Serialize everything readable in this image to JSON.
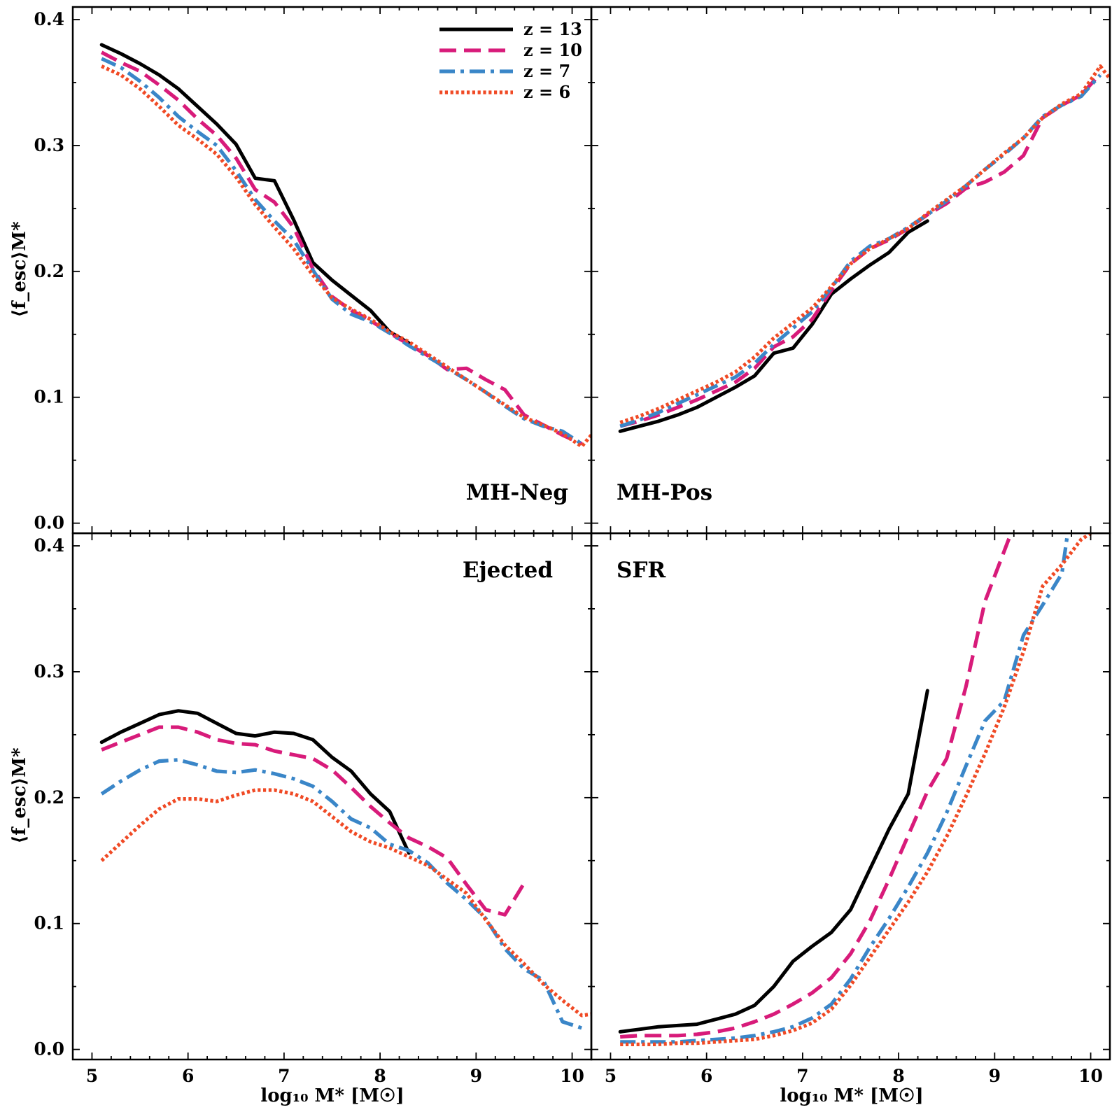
{
  "chart_data": {
    "type": "line",
    "layout": "2x2 grid, shared x axis per column, shared y axis per row",
    "xlabel": "log₁₀ M* [M☉]",
    "ylabel": "⟨f_esc⟩M*",
    "xlim": [
      4.8,
      10.2
    ],
    "ylim": [
      -0.008,
      0.41
    ],
    "x_ticks": [
      5,
      6,
      7,
      8,
      9,
      10
    ],
    "y_ticks": [
      0.0,
      0.1,
      0.2,
      0.3,
      0.4
    ],
    "x_tick_labels": [
      "5",
      "6",
      "7",
      "8",
      "9",
      "10"
    ],
    "y_tick_labels": [
      "0.0",
      "0.1",
      "0.2",
      "0.3",
      "0.4"
    ],
    "grid": false,
    "legend": {
      "placement": "top-right of top-left panel",
      "entries": [
        "z = 13",
        "z = 10",
        "z = 7",
        "z = 6"
      ]
    },
    "series_styles": [
      {
        "name": "z = 13",
        "color": "#000000",
        "dash": "solid"
      },
      {
        "name": "z = 10",
        "color": "#d81b7a",
        "dash": "dashed"
      },
      {
        "name": "z = 7",
        "color": "#3a86c8",
        "dash": "dashdot"
      },
      {
        "name": "z = 6",
        "color": "#f04a25",
        "dash": "dotted"
      }
    ],
    "panels": [
      {
        "label": "MH-Neg",
        "label_position": "bottom-right",
        "series": [
          {
            "name": "z = 13",
            "x": [
              5.1,
              5.3,
              5.5,
              5.7,
              5.9,
              6.1,
              6.3,
              6.5,
              6.7,
              6.9,
              7.1,
              7.3,
              7.5,
              7.7,
              7.9,
              8.1,
              8.3
            ],
            "y": [
              0.38,
              0.373,
              0.365,
              0.356,
              0.345,
              0.331,
              0.317,
              0.301,
              0.274,
              0.272,
              0.241,
              0.207,
              0.193,
              0.181,
              0.169,
              0.152,
              0.143
            ]
          },
          {
            "name": "z = 10",
            "x": [
              5.1,
              5.3,
              5.5,
              5.7,
              5.9,
              6.1,
              6.3,
              6.5,
              6.7,
              6.9,
              7.1,
              7.3,
              7.5,
              7.7,
              7.9,
              8.1,
              8.3,
              8.5,
              8.7,
              8.9,
              9.1,
              9.3,
              9.5,
              9.7,
              9.9,
              10.1
            ],
            "y": [
              0.374,
              0.366,
              0.359,
              0.348,
              0.336,
              0.321,
              0.308,
              0.29,
              0.265,
              0.255,
              0.235,
              0.202,
              0.18,
              0.169,
              0.161,
              0.151,
              0.142,
              0.133,
              0.122,
              0.123,
              0.114,
              0.106,
              0.086,
              0.078,
              0.07,
              0.063
            ]
          },
          {
            "name": "z = 7",
            "x": [
              5.1,
              5.3,
              5.5,
              5.7,
              5.9,
              6.1,
              6.3,
              6.5,
              6.7,
              6.9,
              7.1,
              7.3,
              7.5,
              7.7,
              7.9,
              8.1,
              8.3,
              8.5,
              8.7,
              8.9,
              9.1,
              9.3,
              9.5,
              9.7,
              9.9,
              10.1
            ],
            "y": [
              0.369,
              0.362,
              0.351,
              0.338,
              0.323,
              0.311,
              0.3,
              0.28,
              0.257,
              0.24,
              0.225,
              0.201,
              0.178,
              0.166,
              0.16,
              0.151,
              0.141,
              0.132,
              0.123,
              0.114,
              0.104,
              0.093,
              0.083,
              0.077,
              0.073,
              0.063
            ]
          },
          {
            "name": "z = 6",
            "x": [
              5.1,
              5.3,
              5.5,
              5.7,
              5.9,
              6.1,
              6.3,
              6.5,
              6.7,
              6.9,
              7.1,
              7.3,
              7.5,
              7.7,
              7.9,
              8.1,
              8.3,
              8.5,
              8.7,
              8.9,
              9.1,
              9.3,
              9.5,
              9.7,
              9.9,
              10.1,
              10.2
            ],
            "y": [
              0.363,
              0.356,
              0.345,
              0.331,
              0.316,
              0.305,
              0.293,
              0.275,
              0.253,
              0.235,
              0.218,
              0.197,
              0.179,
              0.17,
              0.162,
              0.152,
              0.144,
              0.134,
              0.124,
              0.114,
              0.104,
              0.094,
              0.084,
              0.078,
              0.071,
              0.061,
              0.07
            ]
          }
        ]
      },
      {
        "label": "MH-Pos",
        "label_position": "bottom-left",
        "series": [
          {
            "name": "z = 13",
            "x": [
              5.1,
              5.3,
              5.5,
              5.7,
              5.9,
              6.1,
              6.3,
              6.5,
              6.7,
              6.9,
              7.1,
              7.3,
              7.5,
              7.7,
              7.9,
              8.1,
              8.3
            ],
            "y": [
              0.073,
              0.077,
              0.081,
              0.086,
              0.092,
              0.1,
              0.108,
              0.117,
              0.135,
              0.139,
              0.158,
              0.182,
              0.194,
              0.205,
              0.215,
              0.231,
              0.24
            ]
          },
          {
            "name": "z = 10",
            "x": [
              5.1,
              5.3,
              5.5,
              5.7,
              5.9,
              6.1,
              6.3,
              6.5,
              6.7,
              6.9,
              7.1,
              7.3,
              7.5,
              7.7,
              7.9,
              8.1,
              8.3,
              8.5,
              8.7,
              8.9,
              9.1,
              9.3,
              9.5,
              9.7,
              9.9,
              10.1
            ],
            "y": [
              0.077,
              0.081,
              0.086,
              0.092,
              0.098,
              0.105,
              0.112,
              0.123,
              0.14,
              0.148,
              0.162,
              0.185,
              0.206,
              0.218,
              0.225,
              0.234,
              0.245,
              0.254,
              0.266,
              0.271,
              0.279,
              0.292,
              0.322,
              0.332,
              0.34,
              0.357
            ]
          },
          {
            "name": "z = 7",
            "x": [
              5.1,
              5.3,
              5.5,
              5.7,
              5.9,
              6.1,
              6.3,
              6.5,
              6.7,
              6.9,
              7.1,
              7.3,
              7.5,
              7.7,
              7.9,
              8.1,
              8.3,
              8.5,
              8.7,
              8.9,
              9.1,
              9.3,
              9.5,
              9.7,
              9.9,
              10.1
            ],
            "y": [
              0.077,
              0.082,
              0.088,
              0.095,
              0.102,
              0.109,
              0.116,
              0.127,
              0.142,
              0.155,
              0.168,
              0.187,
              0.208,
              0.22,
              0.226,
              0.235,
              0.245,
              0.256,
              0.268,
              0.281,
              0.293,
              0.306,
              0.323,
              0.332,
              0.339,
              0.356
            ]
          },
          {
            "name": "z = 6",
            "x": [
              5.1,
              5.3,
              5.5,
              5.7,
              5.9,
              6.1,
              6.3,
              6.5,
              6.7,
              6.9,
              7.1,
              7.3,
              7.5,
              7.7,
              7.9,
              8.1,
              8.3,
              8.5,
              8.7,
              8.9,
              9.1,
              9.3,
              9.5,
              9.7,
              9.9,
              10.1,
              10.2
            ],
            "y": [
              0.08,
              0.085,
              0.091,
              0.098,
              0.105,
              0.112,
              0.12,
              0.132,
              0.147,
              0.159,
              0.171,
              0.188,
              0.206,
              0.218,
              0.226,
              0.234,
              0.246,
              0.257,
              0.268,
              0.281,
              0.294,
              0.306,
              0.322,
              0.333,
              0.341,
              0.363,
              0.353
            ]
          }
        ]
      },
      {
        "label": "Ejected",
        "label_position": "top-right",
        "series": [
          {
            "name": "z = 13",
            "x": [
              5.1,
              5.3,
              5.5,
              5.7,
              5.9,
              6.1,
              6.3,
              6.5,
              6.7,
              6.9,
              7.1,
              7.3,
              7.5,
              7.7,
              7.9,
              8.1,
              8.3
            ],
            "y": [
              0.244,
              0.252,
              0.259,
              0.266,
              0.269,
              0.267,
              0.259,
              0.251,
              0.249,
              0.252,
              0.251,
              0.246,
              0.232,
              0.221,
              0.203,
              0.189,
              0.156
            ]
          },
          {
            "name": "z = 10",
            "x": [
              5.1,
              5.3,
              5.5,
              5.7,
              5.9,
              6.1,
              6.3,
              6.5,
              6.7,
              6.9,
              7.1,
              7.3,
              7.5,
              7.7,
              7.9,
              8.1,
              8.3,
              8.5,
              8.7,
              8.9,
              9.1,
              9.3,
              9.5
            ],
            "y": [
              0.238,
              0.244,
              0.25,
              0.256,
              0.256,
              0.252,
              0.246,
              0.243,
              0.242,
              0.237,
              0.234,
              0.231,
              0.222,
              0.208,
              0.193,
              0.18,
              0.168,
              0.161,
              0.152,
              0.131,
              0.111,
              0.107,
              0.132
            ]
          },
          {
            "name": "z = 7",
            "x": [
              5.1,
              5.3,
              5.5,
              5.7,
              5.9,
              6.1,
              6.3,
              6.5,
              6.7,
              6.9,
              7.1,
              7.3,
              7.5,
              7.7,
              7.9,
              8.1,
              8.3,
              8.5,
              8.7,
              8.9,
              9.1,
              9.3,
              9.5,
              9.7,
              9.9,
              10.1
            ],
            "y": [
              0.203,
              0.213,
              0.222,
              0.229,
              0.23,
              0.226,
              0.221,
              0.22,
              0.222,
              0.219,
              0.215,
              0.209,
              0.197,
              0.183,
              0.176,
              0.163,
              0.158,
              0.148,
              0.132,
              0.119,
              0.104,
              0.08,
              0.064,
              0.055,
              0.022,
              0.017
            ]
          },
          {
            "name": "z = 6",
            "x": [
              5.1,
              5.3,
              5.5,
              5.7,
              5.9,
              6.1,
              6.3,
              6.5,
              6.7,
              6.9,
              7.1,
              7.3,
              7.5,
              7.7,
              7.9,
              8.1,
              8.3,
              8.5,
              8.7,
              8.9,
              9.1,
              9.3,
              9.5,
              9.7,
              9.9,
              10.1,
              10.2
            ],
            "y": [
              0.15,
              0.164,
              0.178,
              0.191,
              0.199,
              0.199,
              0.197,
              0.202,
              0.206,
              0.206,
              0.203,
              0.197,
              0.185,
              0.173,
              0.165,
              0.16,
              0.153,
              0.146,
              0.135,
              0.124,
              0.103,
              0.083,
              0.068,
              0.052,
              0.039,
              0.027,
              0.028
            ]
          }
        ]
      },
      {
        "label": "SFR",
        "label_position": "top-left",
        "series": [
          {
            "name": "z = 13",
            "x": [
              5.1,
              5.3,
              5.5,
              5.7,
              5.9,
              6.1,
              6.3,
              6.5,
              6.7,
              6.9,
              7.1,
              7.3,
              7.5,
              7.7,
              7.9,
              8.1,
              8.3
            ],
            "y": [
              0.014,
              0.016,
              0.018,
              0.019,
              0.02,
              0.024,
              0.028,
              0.035,
              0.05,
              0.07,
              0.082,
              0.093,
              0.111,
              0.143,
              0.175,
              0.203,
              0.285
            ]
          },
          {
            "name": "z = 10",
            "x": [
              5.1,
              5.3,
              5.5,
              5.7,
              5.9,
              6.1,
              6.3,
              6.5,
              6.7,
              6.9,
              7.1,
              7.3,
              7.5,
              7.7,
              7.9,
              8.1,
              8.3,
              8.5,
              8.7,
              8.9,
              9.1,
              9.17
            ],
            "y": [
              0.01,
              0.011,
              0.011,
              0.011,
              0.012,
              0.014,
              0.017,
              0.022,
              0.028,
              0.036,
              0.045,
              0.057,
              0.076,
              0.102,
              0.135,
              0.17,
              0.205,
              0.231,
              0.288,
              0.356,
              0.396,
              0.41
            ]
          },
          {
            "name": "z = 7",
            "x": [
              5.1,
              5.3,
              5.5,
              5.7,
              5.9,
              6.1,
              6.3,
              6.5,
              6.7,
              6.9,
              7.1,
              7.3,
              7.5,
              7.7,
              7.9,
              8.1,
              8.3,
              8.5,
              8.7,
              8.9,
              9.1,
              9.3,
              9.5,
              9.7,
              9.76
            ],
            "y": [
              0.006,
              0.006,
              0.006,
              0.006,
              0.007,
              0.008,
              0.009,
              0.011,
              0.014,
              0.018,
              0.025,
              0.036,
              0.056,
              0.081,
              0.104,
              0.129,
              0.156,
              0.188,
              0.225,
              0.261,
              0.277,
              0.329,
              0.353,
              0.378,
              0.41
            ]
          },
          {
            "name": "z = 6",
            "x": [
              5.1,
              5.3,
              5.5,
              5.7,
              5.9,
              6.1,
              6.3,
              6.5,
              6.7,
              6.9,
              7.1,
              7.3,
              7.5,
              7.7,
              7.9,
              8.1,
              8.3,
              8.5,
              8.7,
              8.9,
              9.1,
              9.3,
              9.5,
              9.7,
              9.9,
              10.0
            ],
            "y": [
              0.004,
              0.004,
              0.004,
              0.005,
              0.005,
              0.006,
              0.007,
              0.008,
              0.011,
              0.015,
              0.021,
              0.032,
              0.051,
              0.073,
              0.095,
              0.117,
              0.141,
              0.169,
              0.201,
              0.235,
              0.272,
              0.316,
              0.368,
              0.385,
              0.405,
              0.41
            ]
          }
        ]
      }
    ]
  }
}
